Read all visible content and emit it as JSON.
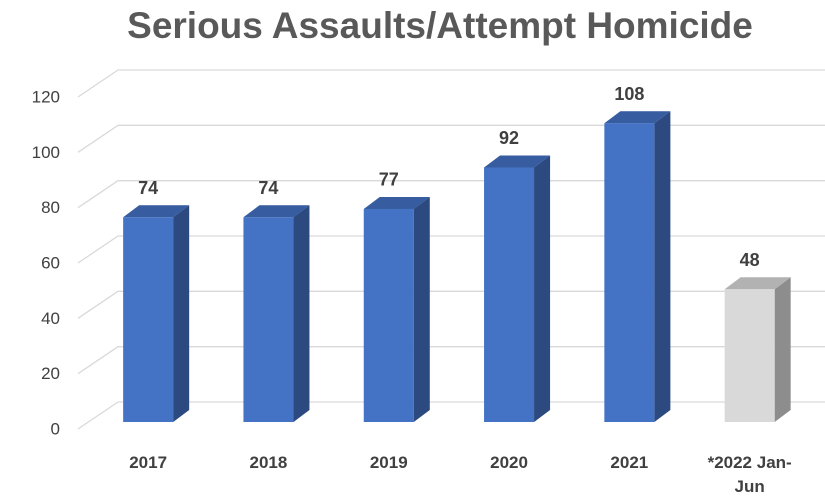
{
  "chart_data": {
    "type": "bar3d",
    "title": "Serious Assaults/Attempt Homicide",
    "categories": [
      "2017",
      "2018",
      "2019",
      "2020",
      "2021",
      "*2022 Jan-Jun"
    ],
    "values": [
      74,
      74,
      77,
      92,
      108,
      48
    ],
    "colors": [
      "#4472c4",
      "#4472c4",
      "#4472c4",
      "#4472c4",
      "#4472c4",
      "#d9d9d9"
    ],
    "ylim": [
      0,
      120
    ],
    "yticks": [
      0,
      20,
      40,
      60,
      80,
      100,
      120
    ],
    "grid": true
  }
}
